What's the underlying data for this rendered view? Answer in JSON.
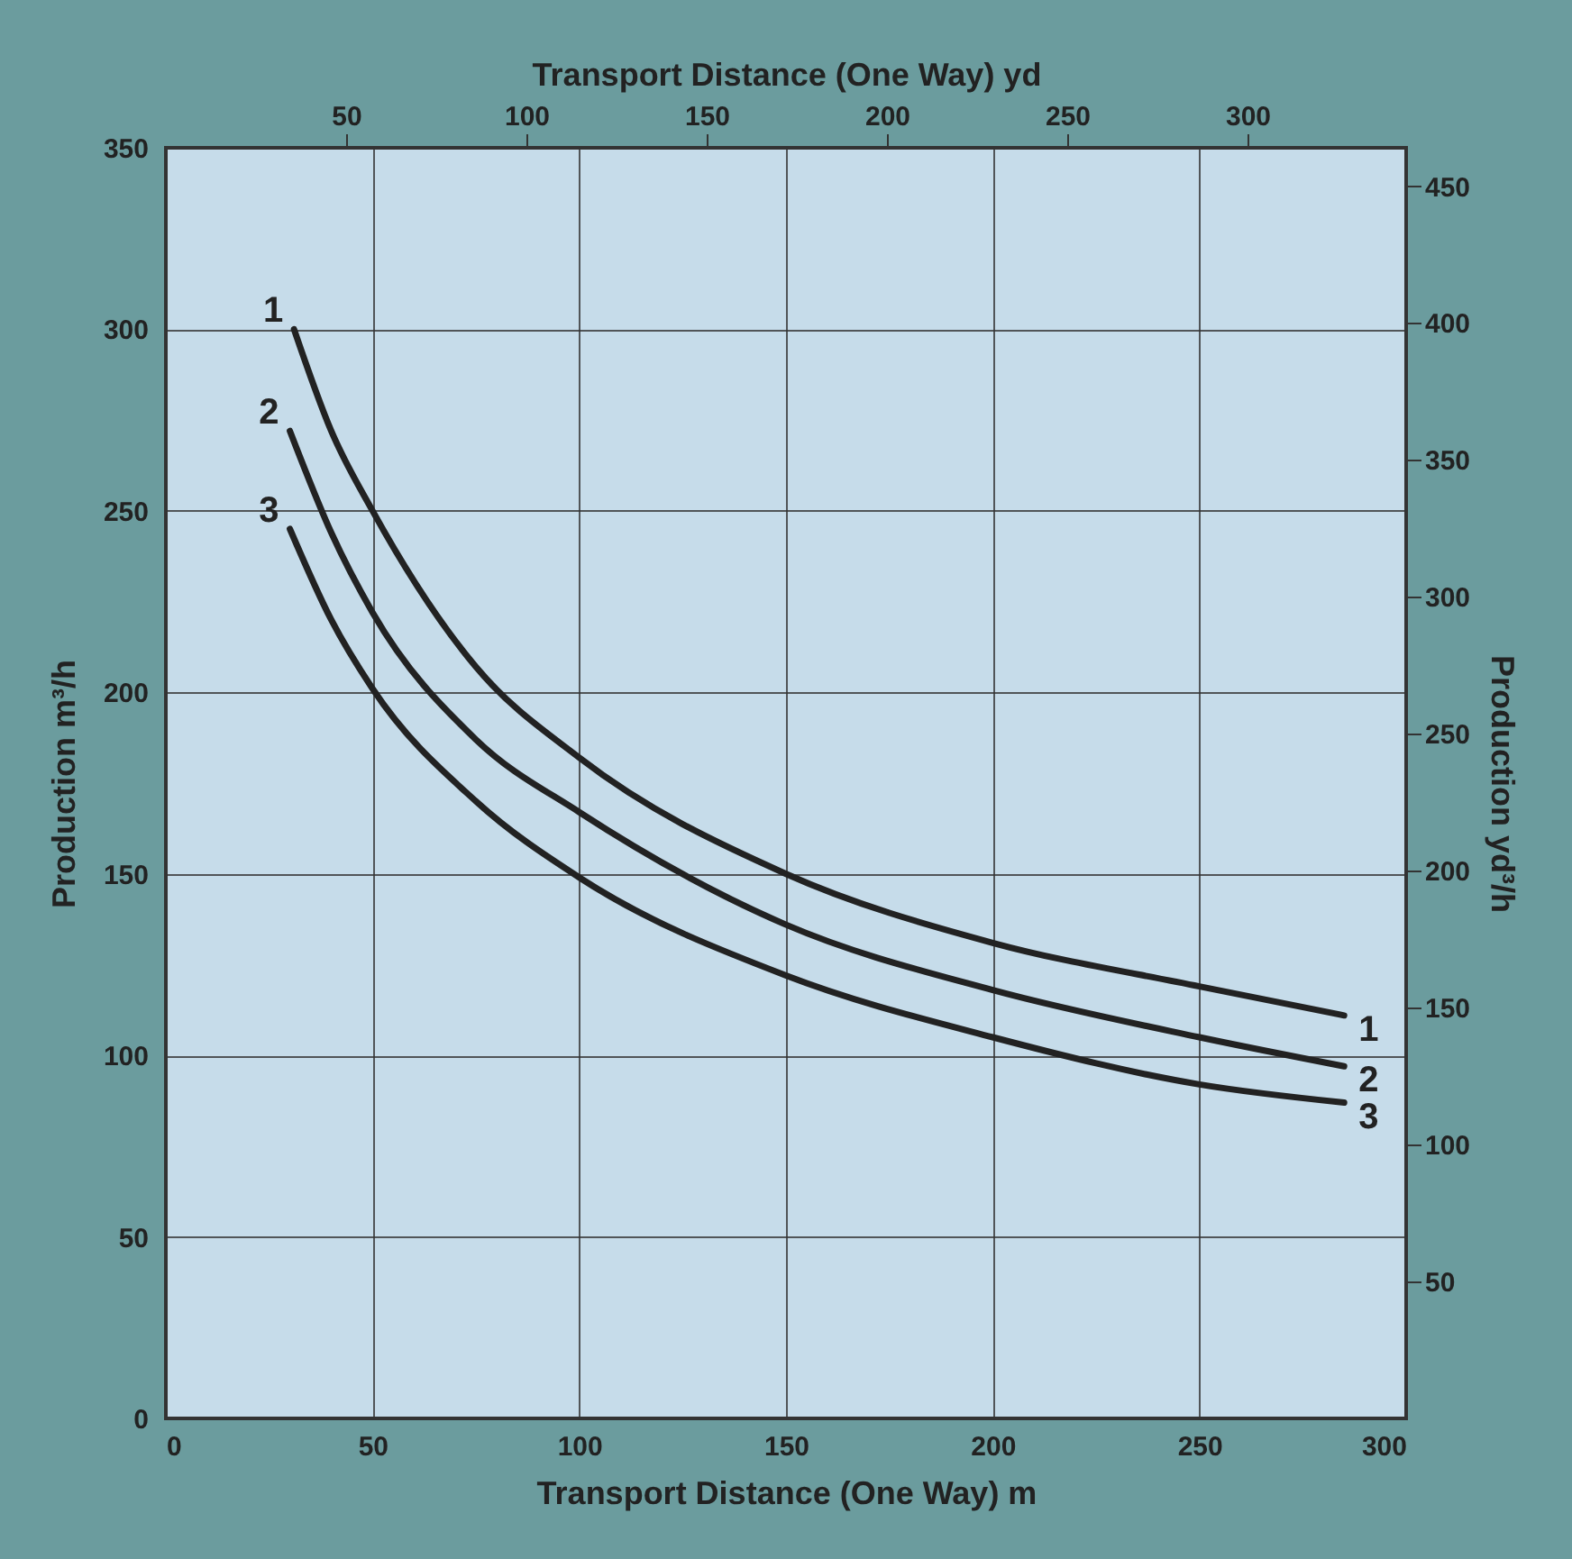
{
  "chart_data": {
    "type": "line",
    "xlabel": "Transport Distance (One Way) m",
    "ylabel": "Production m³/h",
    "x2label": "Transport Distance (One Way) yd",
    "y2label": "Production yd³/h",
    "xlim": [
      0,
      300
    ],
    "xticks": [
      0,
      50,
      100,
      150,
      200,
      250,
      300
    ],
    "ylim": [
      0,
      350
    ],
    "yticks": [
      0,
      50,
      100,
      150,
      200,
      250,
      300,
      350
    ],
    "x2lim": [
      0,
      344
    ],
    "x2ticks": [
      50,
      100,
      150,
      200,
      250,
      300
    ],
    "y2lim": [
      0,
      464
    ],
    "y2ticks": [
      50,
      100,
      150,
      200,
      250,
      300,
      350,
      400,
      450
    ],
    "grid": true,
    "legend": false,
    "marker": "none",
    "line_style": "solid",
    "series": [
      {
        "name": "1",
        "color": "#222222",
        "x": [
          31,
          40,
          50,
          75,
          100,
          150,
          200,
          250,
          285
        ],
        "values": [
          300,
          272,
          250,
          207,
          182,
          150,
          131,
          119,
          111
        ]
      },
      {
        "name": "2",
        "color": "#222222",
        "x": [
          30,
          40,
          50,
          75,
          100,
          150,
          200,
          250,
          285
        ],
        "values": [
          272,
          244,
          222,
          187,
          167,
          136,
          118,
          105,
          97
        ]
      },
      {
        "name": "3",
        "color": "#222222",
        "x": [
          30,
          40,
          50,
          75,
          100,
          150,
          200,
          250,
          285
        ],
        "values": [
          245,
          220,
          201,
          170,
          149,
          122,
          105,
          92,
          87
        ]
      }
    ]
  }
}
